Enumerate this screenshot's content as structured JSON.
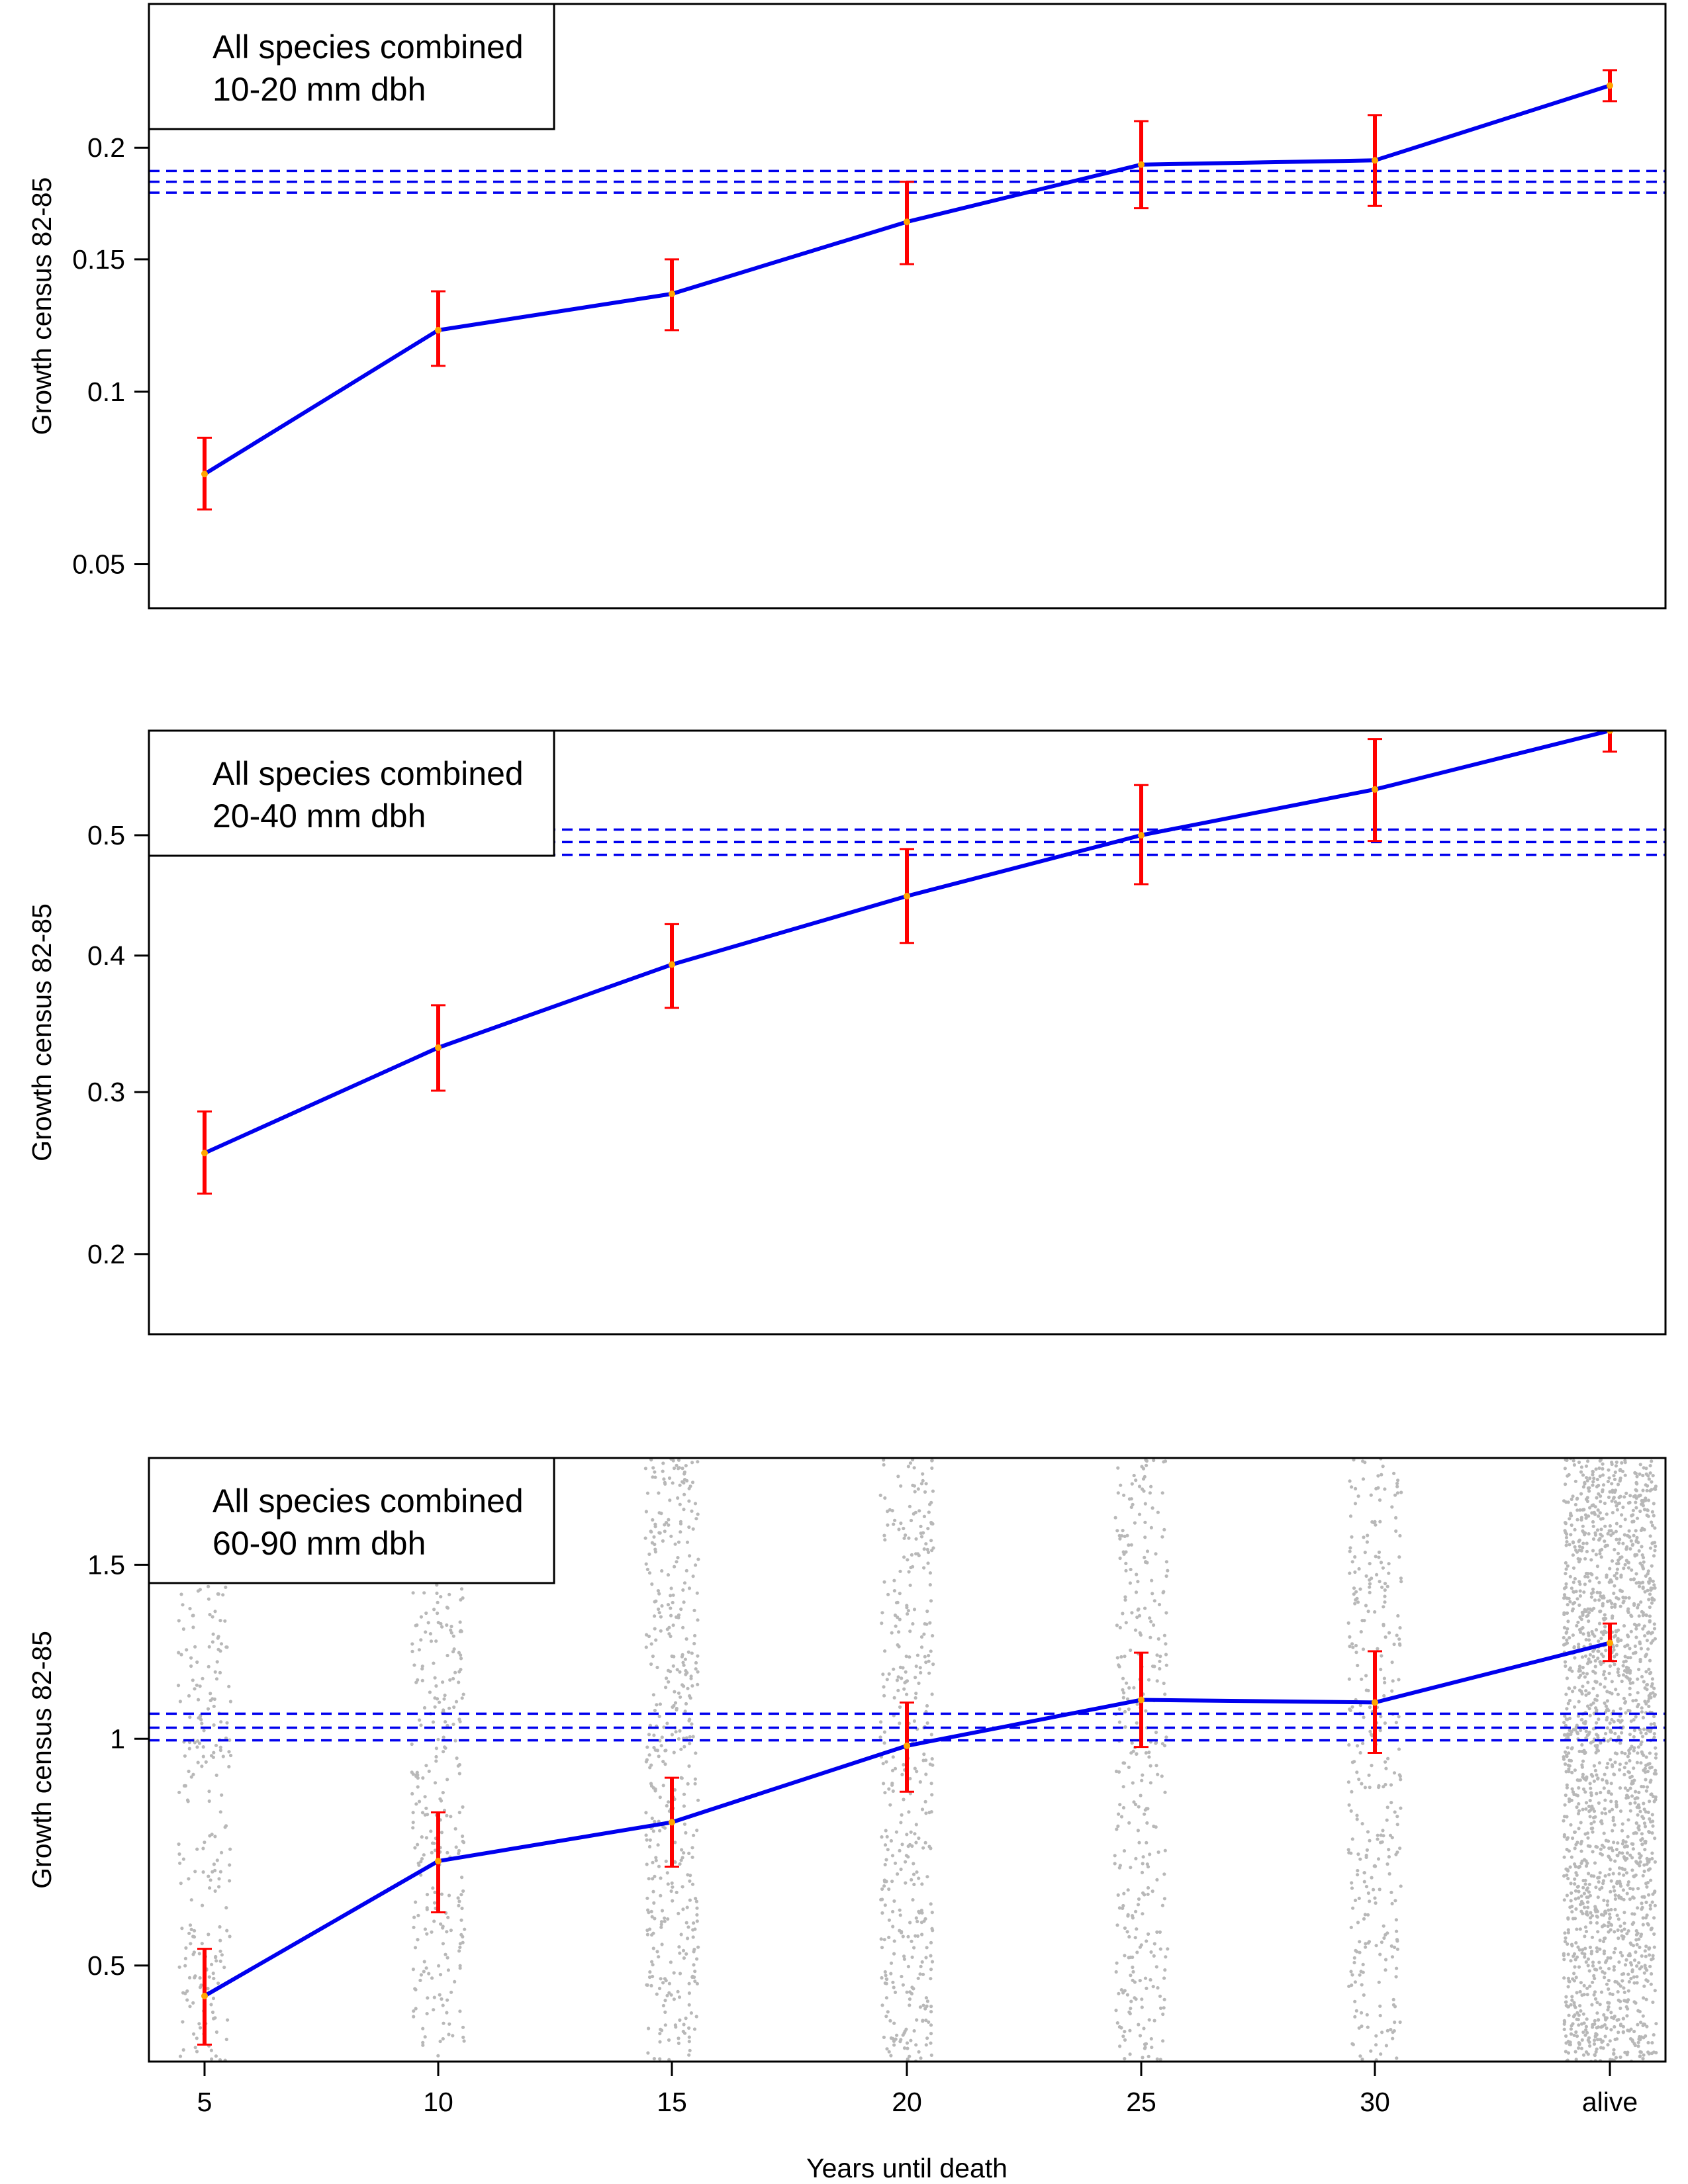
{
  "figure": {
    "xlabel": "Years until death",
    "ylabel": "Growth census 82-85",
    "colors": {
      "line": "#0000ee",
      "error_bar": "#ff0000",
      "point": "#ffa500",
      "reference": "#0000ee",
      "jitter": "#b8b8b8"
    }
  },
  "chart_data": [
    {
      "type": "line",
      "y_scale": "sqrt",
      "legend": [
        "All species combined",
        "10-20 mm dbh"
      ],
      "legend_position": "top-left",
      "categories": [
        "5",
        "10",
        "15",
        "20",
        "25",
        "30",
        "alive"
      ],
      "xlabel": "",
      "ylabel": "Growth census 82-85",
      "yticks": [
        0.05,
        0.1,
        0.15,
        0.2
      ],
      "ytick_labels": [
        "0.05",
        "0.1",
        "0.15",
        "0.2"
      ],
      "ylim": [
        0.04,
        0.275
      ],
      "series": [
        {
          "name": "mean growth",
          "values": [
            0.074,
            0.122,
            0.136,
            0.166,
            0.192,
            0.194,
            0.231
          ],
          "lower": [
            0.064,
            0.109,
            0.122,
            0.148,
            0.172,
            0.173,
            0.223
          ],
          "upper": [
            0.085,
            0.137,
            0.15,
            0.184,
            0.213,
            0.216,
            0.239
          ]
        }
      ],
      "reference_lines": [
        0.189,
        0.184,
        0.179
      ],
      "reference_from_category_index": 0,
      "jitter": false
    },
    {
      "type": "line",
      "y_scale": "sqrt",
      "legend": [
        "All species combined",
        "20-40 mm dbh"
      ],
      "legend_position": "top-left",
      "categories": [
        "5",
        "10",
        "15",
        "20",
        "25",
        "30",
        "alive"
      ],
      "xlabel": "",
      "ylabel": "Growth census 82-85",
      "yticks": [
        0.2,
        0.3,
        0.4,
        0.5
      ],
      "ytick_labels": [
        "0.2",
        "0.3",
        "0.4",
        "0.5"
      ],
      "ylim": [
        0.158,
        0.596
      ],
      "series": [
        {
          "name": "mean growth",
          "values": [
            0.26,
            0.331,
            0.393,
            0.448,
            0.5,
            0.541,
            0.596
          ],
          "lower": [
            0.235,
            0.301,
            0.36,
            0.41,
            0.458,
            0.495,
            0.576
          ],
          "upper": [
            0.287,
            0.362,
            0.425,
            0.488,
            0.545,
            0.588,
            0.603
          ]
        }
      ],
      "reference_lines": [
        0.505,
        0.494,
        0.483
      ],
      "reference_from_category_index": 0,
      "jitter": false
    },
    {
      "type": "line",
      "y_scale": "sqrt",
      "legend": [
        "All species combined",
        "60-90 mm dbh"
      ],
      "legend_position": "top-left",
      "categories": [
        "5",
        "10",
        "15",
        "20",
        "25",
        "30",
        "alive"
      ],
      "xlabel": "Years until death",
      "ylabel": "Growth census 82-85",
      "xtick_labels": [
        "5",
        "10",
        "15",
        "20",
        "25",
        "30",
        "alive"
      ],
      "yticks": [
        0.5,
        1,
        1.5
      ],
      "ytick_labels": [
        "0.5",
        "1",
        "1.5"
      ],
      "ylim": [
        0.34,
        1.857
      ],
      "series": [
        {
          "name": "mean growth",
          "values": [
            0.446,
            0.709,
            0.796,
            0.982,
            1.103,
            1.096,
            1.263
          ],
          "lower": [
            0.366,
            0.602,
            0.697,
            0.868,
            0.979,
            0.964,
            1.211
          ],
          "upper": [
            0.531,
            0.819,
            0.902,
            1.096,
            1.235,
            1.239,
            1.32
          ]
        }
      ],
      "reference_lines": [
        1.066,
        1.029,
        0.996
      ],
      "reference_from_category_index": 0,
      "jitter": true,
      "jitter_relative_density": [
        0.4,
        0.45,
        0.6,
        0.55,
        0.45,
        0.45,
        2.6
      ]
    }
  ]
}
